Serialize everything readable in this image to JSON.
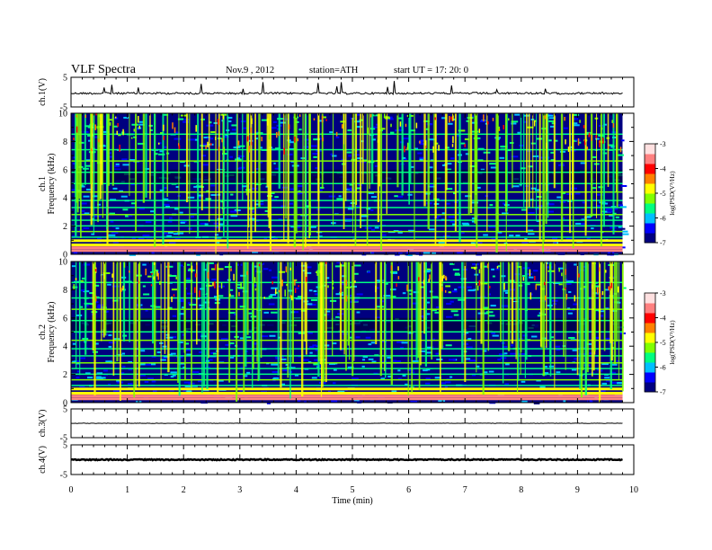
{
  "header": {
    "title": "VLF  Spectra",
    "date": "Nov.9  , 2012",
    "station": "station=ATH",
    "start": "start  UT  =   17: 20: 0"
  },
  "chart_data": {
    "type": "heatmap",
    "title": "VLF  Spectra",
    "xlabel": "Time  (min)",
    "xlim": [
      0,
      10
    ],
    "x_ticks": [
      "0",
      "1",
      "2",
      "3",
      "4",
      "5",
      "6",
      "7",
      "8",
      "9",
      "10"
    ],
    "data_end_min": 9.8,
    "panels": [
      {
        "name": "ch1-waveform",
        "type": "line",
        "ylabel": "ch.1(V)",
        "ylim": [
          -5,
          5
        ],
        "y_ticks": [
          "5",
          "-5"
        ],
        "baseline": -0.4
      },
      {
        "name": "ch1-spectrogram",
        "type": "heatmap",
        "channel_label": "ch.1",
        "ylabel": "Frequency  (kHz)",
        "ylim": [
          0,
          10
        ],
        "y_ticks": [
          "0",
          "2",
          "4",
          "6",
          "8",
          "10"
        ],
        "colorbar": {
          "label": "log(PSD(V²/Hz)",
          "range": [
            -7,
            -3
          ],
          "ticks": [
            "-3",
            "-4",
            "-5",
            "-6",
            "-7"
          ]
        },
        "colormap": [
          "#000080",
          "#0000ff",
          "#00bfff",
          "#00ff80",
          "#80ff00",
          "#ffff00",
          "#ff8000",
          "#ff0000",
          "#ff8080",
          "#ffe0e0"
        ],
        "bands_khz": [
          0.3,
          0.5,
          0.7,
          1.0,
          1.2,
          1.6,
          2.0,
          2.4,
          2.8,
          3.3,
          3.8,
          4.4,
          5.0,
          5.8,
          6.6,
          7.4,
          8.5
        ]
      },
      {
        "name": "ch2-spectrogram",
        "type": "heatmap",
        "channel_label": "ch.2",
        "ylabel": "Frequency  (kHz)",
        "ylim": [
          0,
          10
        ],
        "y_ticks": [
          "0",
          "2",
          "4",
          "6",
          "8",
          "10"
        ],
        "colorbar": {
          "label": "log(PSD(V²/Hz)",
          "range": [
            -7,
            -3
          ],
          "ticks": [
            "-3",
            "-4",
            "-5",
            "-6",
            "-7"
          ]
        },
        "colormap": [
          "#000080",
          "#0000ff",
          "#00bfff",
          "#00ff80",
          "#80ff00",
          "#ffff00",
          "#ff8000",
          "#ff0000",
          "#ff8080",
          "#ffe0e0"
        ],
        "bands_khz": [
          0.3,
          0.5,
          0.7,
          1.0,
          1.2,
          1.6,
          2.0,
          2.4,
          2.8,
          3.3,
          3.8,
          4.4,
          5.0,
          5.8,
          6.6,
          7.4,
          8.5
        ]
      },
      {
        "name": "ch3-waveform",
        "type": "line",
        "ylabel": "ch.3(V)",
        "ylim": [
          -5,
          5
        ],
        "y_ticks": [
          "5",
          "-5"
        ],
        "baseline": 0
      },
      {
        "name": "ch4-waveform",
        "type": "line",
        "ylabel": "ch.4(V)",
        "ylim": [
          -5,
          5
        ],
        "y_ticks": [
          "5",
          "-5"
        ],
        "baseline": 0
      }
    ]
  }
}
